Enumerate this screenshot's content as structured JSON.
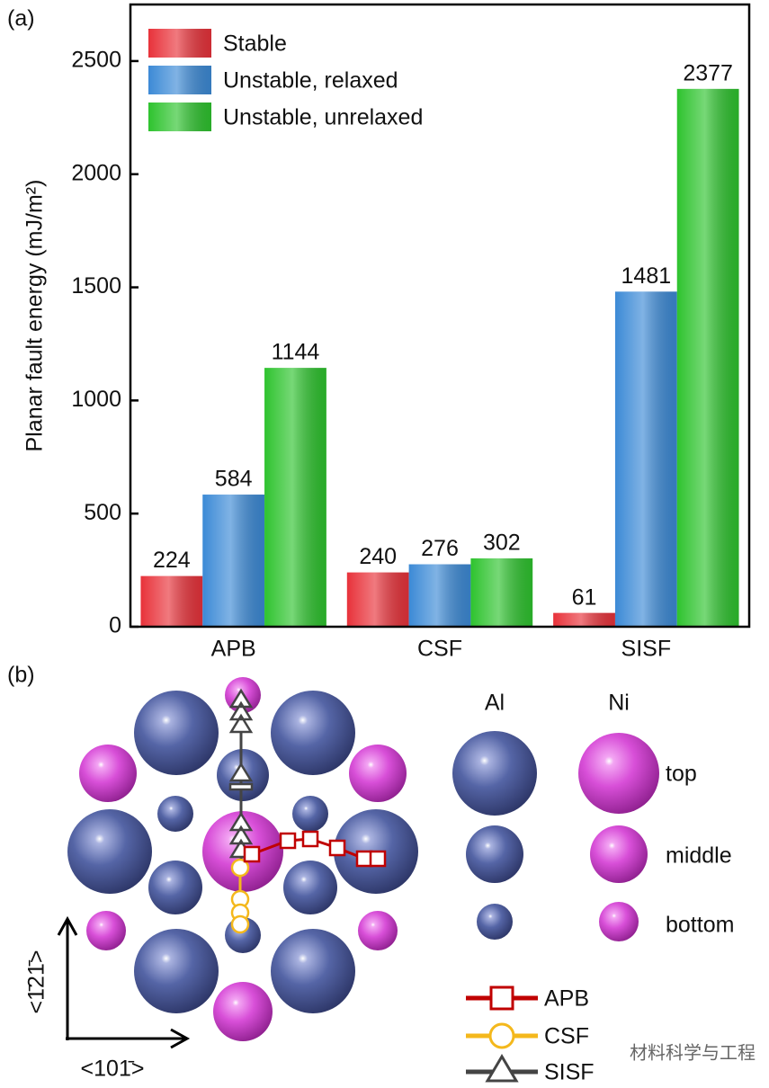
{
  "panels": [
    "(a)",
    "(b)"
  ],
  "chart_data": {
    "type": "bar",
    "y_label": "Planar fault energy (mJ/m²)",
    "categories": [
      "APB",
      "CSF",
      "SISF"
    ],
    "series": [
      {
        "name": "Stable",
        "color": "#e8323a",
        "values": [
          224,
          240,
          61
        ]
      },
      {
        "name": "Unstable, relaxed",
        "color": "#3c8ad6",
        "values": [
          584,
          276,
          1481
        ]
      },
      {
        "name": "Unstable, unrelaxed",
        "color": "#2ec32e",
        "values": [
          1144,
          302,
          2377
        ]
      }
    ],
    "ylim": [
      0,
      2750
    ],
    "yticks": [
      0,
      500,
      1000,
      1500,
      2000,
      2500
    ],
    "legend": "upper-left",
    "value_labels_shown": true
  },
  "diagram": {
    "columns": [
      "Al",
      "Ni"
    ],
    "rows": [
      "top",
      "middle",
      "bottom"
    ],
    "paths": [
      "APB",
      "CSF",
      "SISF"
    ],
    "directions": {
      "vertical": "<1̄21̄>",
      "horizontal": "<101̄>"
    },
    "watermark": "材料科学与工程"
  }
}
